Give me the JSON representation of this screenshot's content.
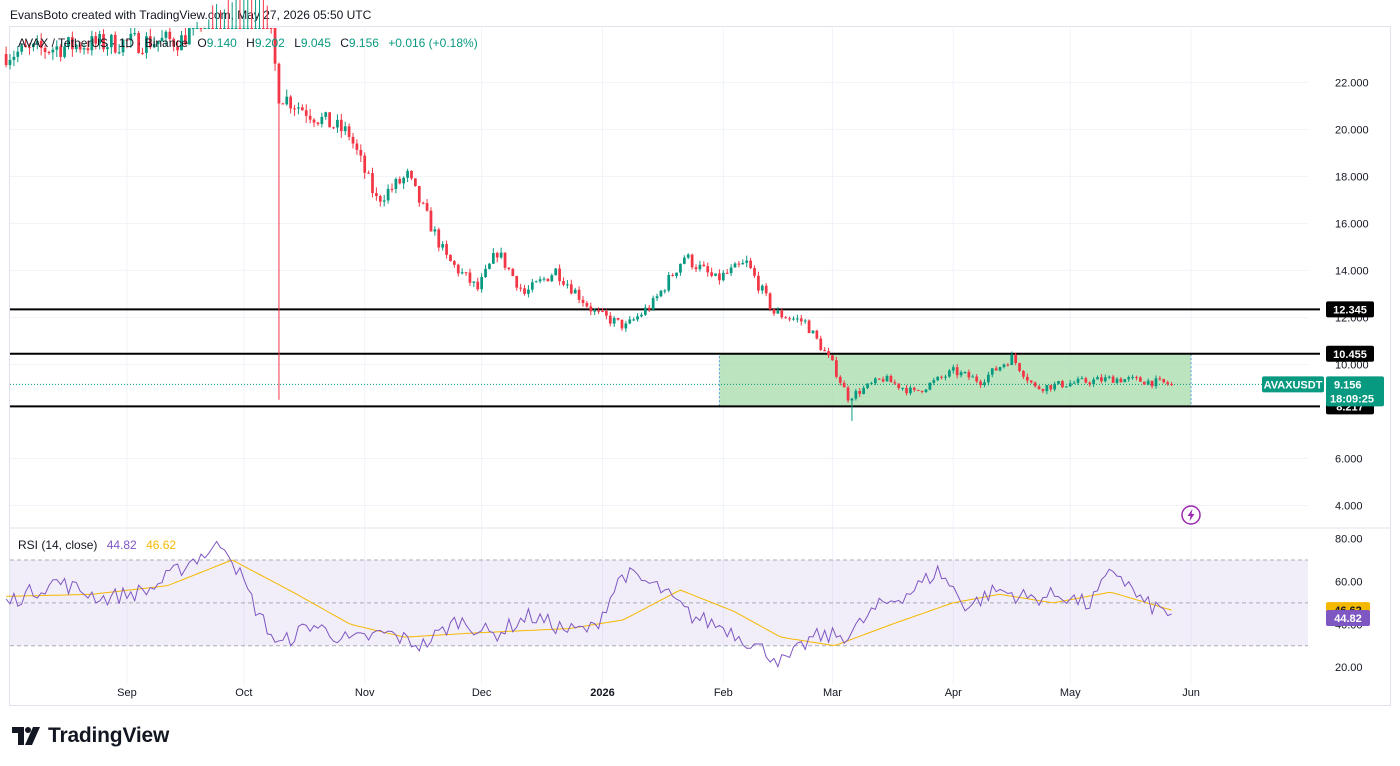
{
  "attribution": "EvansBoto created with TradingView.com, May 27, 2026 05:50 UTC",
  "header": {
    "symbol": "AVAX / TetherUS · 1D · Binance",
    "open_label": "O",
    "open": "9.140",
    "high_label": "H",
    "high": "9.202",
    "low_label": "L",
    "low": "9.045",
    "close_label": "C",
    "close": "9.156",
    "change": "+0.016 (+0.18%)"
  },
  "colors": {
    "up": "#089981",
    "down": "#f23645",
    "rsi": "#7e57c2",
    "rsi_ma": "#f5b800",
    "range_fill": "#a5dca9",
    "level_line": "#000000",
    "symbol_tag": "#089981"
  },
  "chart_data": [
    {
      "type": "candlestick",
      "x_ticks": [
        "Sep",
        "Oct",
        "Nov",
        "Dec",
        "2026",
        "Feb",
        "Mar",
        "Apr",
        "May",
        "Jun"
      ],
      "y_ticks": [
        "4.000",
        "6.000",
        "10.000",
        "12.000",
        "14.000",
        "16.000",
        "18.000",
        "20.000",
        "22.000"
      ],
      "ylim": [
        3.3,
        23.8
      ],
      "grid": true,
      "levels": [
        {
          "label": "12.345",
          "value": 12.345
        },
        {
          "label": "10.455",
          "value": 10.455
        },
        {
          "label": "8.217",
          "value": 8.217
        }
      ],
      "range_box": {
        "from": "2026-01-31",
        "to": "2026-06-01",
        "top": 10.455,
        "bottom": 8.217
      },
      "last_price": {
        "symbol": "AVAXUSDT",
        "price": "9.156",
        "countdown": "18:09:25",
        "value": 9.156
      },
      "anchors": [
        [
          "2025-08-01",
          23.2
        ],
        [
          "2025-08-20",
          23.6
        ],
        [
          "2025-09-15",
          23.8
        ],
        [
          "2025-10-05",
          27.5
        ],
        [
          "2025-10-10",
          21.5
        ],
        [
          "2025-10-20",
          20.5
        ],
        [
          "2025-10-28",
          19.8
        ],
        [
          "2025-11-04",
          17.0
        ],
        [
          "2025-11-12",
          18.0
        ],
        [
          "2025-11-22",
          14.5
        ],
        [
          "2025-11-30",
          13.2
        ],
        [
          "2025-12-05",
          14.8
        ],
        [
          "2025-12-12",
          13.0
        ],
        [
          "2025-12-20",
          14.0
        ],
        [
          "2025-12-30",
          12.2
        ],
        [
          "2026-01-07",
          11.6
        ],
        [
          "2026-01-14",
          12.6
        ],
        [
          "2026-01-22",
          14.6
        ],
        [
          "2026-01-30",
          13.6
        ],
        [
          "2026-02-07",
          14.3
        ],
        [
          "2026-02-14",
          12.2
        ],
        [
          "2026-02-22",
          11.8
        ],
        [
          "2026-03-01",
          10.0
        ],
        [
          "2026-03-05",
          8.6
        ],
        [
          "2026-03-14",
          9.4
        ],
        [
          "2026-03-22",
          8.8
        ],
        [
          "2026-04-01",
          9.7
        ],
        [
          "2026-04-08",
          9.3
        ],
        [
          "2026-04-16",
          10.3
        ],
        [
          "2026-04-22",
          9.0
        ],
        [
          "2026-05-01",
          9.2
        ],
        [
          "2026-05-12",
          9.4
        ],
        [
          "2026-05-20",
          9.3
        ],
        [
          "2026-05-27",
          9.156
        ]
      ]
    },
    {
      "type": "line",
      "title": "RSI (14, close)",
      "rsi_value": "44.82",
      "ma_value": "46.62",
      "y_ticks": [
        "20.00",
        "40.00",
        "60.00",
        "80.00"
      ],
      "ylim": [
        14,
        84
      ],
      "bands": [
        30,
        70
      ],
      "midline": 50,
      "series": [
        {
          "name": "RSI",
          "anchors": [
            [
              "2025-08-01",
              50
            ],
            [
              "2025-08-15",
              60
            ],
            [
              "2025-08-28",
              52
            ],
            [
              "2025-09-10",
              56
            ],
            [
              "2025-09-22",
              70
            ],
            [
              "2025-10-01",
              78
            ],
            [
              "2025-10-10",
              46
            ],
            [
              "2025-10-16",
              30
            ],
            [
              "2025-10-25",
              40
            ],
            [
              "2025-11-05",
              32
            ],
            [
              "2025-11-15",
              36
            ],
            [
              "2025-11-25",
              30
            ],
            [
              "2025-12-05",
              42
            ],
            [
              "2025-12-15",
              35
            ],
            [
              "2025-12-25",
              44
            ],
            [
              "2026-01-05",
              37
            ],
            [
              "2026-01-12",
              38
            ],
            [
              "2026-01-20",
              64
            ],
            [
              "2026-01-30",
              57
            ],
            [
              "2026-02-08",
              44
            ],
            [
              "2026-02-18",
              38
            ],
            [
              "2026-02-28",
              28
            ],
            [
              "2026-03-06",
              22
            ],
            [
              "2026-03-14",
              34
            ],
            [
              "2026-03-24",
              35
            ],
            [
              "2026-04-01",
              48
            ],
            [
              "2026-04-10",
              55
            ],
            [
              "2026-04-18",
              65
            ],
            [
              "2026-04-26",
              48
            ],
            [
              "2026-05-04",
              56
            ],
            [
              "2026-05-14",
              52
            ],
            [
              "2026-05-22",
              54
            ],
            [
              "2026-05-30",
              49
            ],
            [
              "2026-06-06",
              66
            ],
            [
              "2026-06-14",
              50
            ],
            [
              "2026-06-22",
              44.82
            ]
          ]
        },
        {
          "name": "RSI MA",
          "anchors": [
            [
              "2025-08-01",
              53
            ],
            [
              "2025-08-25",
              54
            ],
            [
              "2025-09-15",
              58
            ],
            [
              "2025-10-03",
              70
            ],
            [
              "2025-10-20",
              55
            ],
            [
              "2025-11-05",
              40
            ],
            [
              "2025-11-20",
              34
            ],
            [
              "2025-12-10",
              36
            ],
            [
              "2026-01-05",
              38
            ],
            [
              "2026-01-20",
              42
            ],
            [
              "2026-02-05",
              56
            ],
            [
              "2026-02-20",
              46
            ],
            [
              "2026-03-05",
              34
            ],
            [
              "2026-03-20",
              30
            ],
            [
              "2026-04-05",
              40
            ],
            [
              "2026-04-22",
              50
            ],
            [
              "2026-05-05",
              54
            ],
            [
              "2026-05-20",
              50
            ],
            [
              "2026-06-05",
              55
            ],
            [
              "2026-06-22",
              46.62
            ]
          ]
        }
      ]
    }
  ],
  "footer": {
    "logo_text": "TradingView"
  }
}
